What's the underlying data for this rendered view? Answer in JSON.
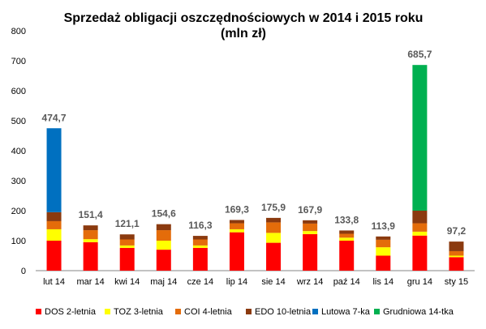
{
  "chart_data": {
    "type": "bar",
    "stacked": true,
    "title": "Sprzedaż obligacji oszczędnościowych w 2014 i 2015 roku",
    "subtitle": "(mln zł)",
    "xlabel": "",
    "ylabel": "",
    "ylim": [
      0,
      800
    ],
    "yticks": [
      0,
      100,
      200,
      300,
      400,
      500,
      600,
      700,
      800
    ],
    "grid": false,
    "legend_position": "bottom",
    "categories": [
      "lut 14",
      "mar 14",
      "kwi 14",
      "maj 14",
      "cze 14",
      "lip 14",
      "sie 14",
      "wrz 14",
      "paź 14",
      "lis 14",
      "gru 14",
      "sty 15"
    ],
    "totals": [
      "474,7",
      "151,4",
      "121,1",
      "154,6",
      "116,3",
      "169,3",
      "175,9",
      "167,9",
      "133,8",
      "113,9",
      "685,7",
      "97,2"
    ],
    "series": [
      {
        "name": "DOS 2-letnia",
        "color": "#ff0000",
        "values": [
          100,
          95,
          76,
          70,
          76,
          128,
          93,
          122,
          100,
          50,
          117,
          45
        ]
      },
      {
        "name": "TOZ 3-letnia",
        "color": "#ffff00",
        "values": [
          38,
          10,
          8,
          30,
          8,
          10,
          33,
          10,
          10,
          28,
          13,
          5
        ]
      },
      {
        "name": "COI 4-letnia",
        "color": "#e46c0a",
        "values": [
          27,
          30,
          20,
          35,
          20,
          20,
          35,
          25,
          13,
          25,
          28,
          15
        ]
      },
      {
        "name": "EDO 10-letnia",
        "color": "#8b3a0f",
        "values": [
          30,
          16,
          17,
          20,
          12,
          11,
          15,
          11,
          11,
          11,
          42,
          32
        ]
      },
      {
        "name": "Lutowa 7-ka",
        "color": "#0070c0",
        "values": [
          280,
          0,
          0,
          0,
          0,
          0,
          0,
          0,
          0,
          0,
          0,
          0
        ]
      },
      {
        "name": "Grudniowa 14-tka",
        "color": "#00b050",
        "values": [
          0,
          0,
          0,
          0,
          0,
          0,
          0,
          0,
          0,
          0,
          486,
          0
        ]
      }
    ]
  }
}
